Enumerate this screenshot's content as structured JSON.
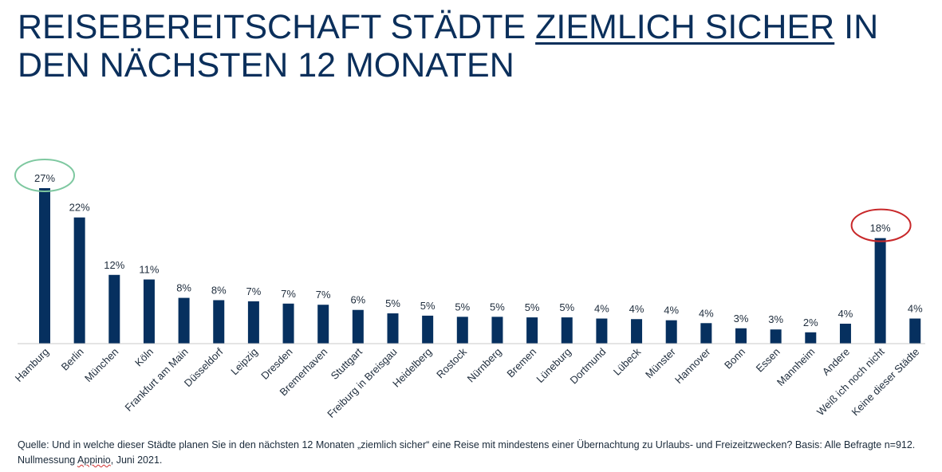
{
  "title": {
    "part1": "REISEBEREITSCHAFT STÄDTE ",
    "underlined": "ZIEMLICH SICHER",
    "part2": " IN DEN NÄCHSTEN 12 MONATEN"
  },
  "source": {
    "part1": "Quelle: Und in welche dieser Städte planen Sie in den nächsten 12 Monaten „ziemlich sicher“ eine Reise mit mindestens einer Übernachtung zu Urlaubs- und Freizeitzwecken? Basis: Alle Befragte n=912. Nullmessung ",
    "flagged_word": "Appinio",
    "part2": ", Juni 2021."
  },
  "colors": {
    "bar": "#06305f",
    "title": "#0b2f5b",
    "highlight_top": "#7ec8a0",
    "highlight_alert": "#c8282a",
    "axis": "#c8c8c8"
  },
  "chart_data": {
    "type": "bar",
    "title": "REISEBEREITSCHAFT STÄDTE ZIEMLICH SICHER IN DEN NÄCHSTEN 12 MONATEN",
    "xlabel": "",
    "ylabel": "",
    "unit": "%",
    "ylim": [
      0,
      27
    ],
    "grid": false,
    "legend": "none",
    "categories": [
      "Hamburg",
      "Berlin",
      "München",
      "Köln",
      "Frankfurt am Main",
      "Düsseldorf",
      "Leipzig",
      "Dresden",
      "Bremerhaven",
      "Stuttgart",
      "Freiburg in Breisgau",
      "Heidelberg",
      "Rostock",
      "Nürnberg",
      "Bremen",
      "Lüneburg",
      "Dortmund",
      "Lübeck",
      "Münster",
      "Hannover",
      "Bonn",
      "Essen",
      "Mannheim",
      "Andere",
      "Weiß ich noch nicht",
      "Keine dieser Städte"
    ],
    "values": [
      27,
      22,
      12,
      11,
      8,
      8,
      7,
      7,
      7,
      6,
      5,
      5,
      5,
      5,
      5,
      5,
      4,
      4,
      4,
      4,
      3,
      3,
      2,
      4,
      18,
      4
    ],
    "labels": [
      "27%",
      "22%",
      "12%",
      "11%",
      "8%",
      "8%",
      "7%",
      "7%",
      "7%",
      "6%",
      "5%",
      "5%",
      "5%",
      "5%",
      "5%",
      "5%",
      "4%",
      "4%",
      "4%",
      "4%",
      "3%",
      "3%",
      "2%",
      "4%",
      "18%",
      "4%"
    ],
    "bar_heights_exact": [
      27,
      21.9,
      11.9,
      11.1,
      7.9,
      7.5,
      7.3,
      6.9,
      6.7,
      5.8,
      5.2,
      4.8,
      4.6,
      4.6,
      4.5,
      4.5,
      4.3,
      4.2,
      4.0,
      3.5,
      2.6,
      2.4,
      1.9,
      3.4,
      18.3,
      4.3
    ],
    "annotations": [
      {
        "category": "Hamburg",
        "type": "ellipse",
        "color": "#7ec8a0"
      },
      {
        "category": "Weiß ich noch nicht",
        "type": "ellipse",
        "color": "#c8282a"
      }
    ]
  }
}
